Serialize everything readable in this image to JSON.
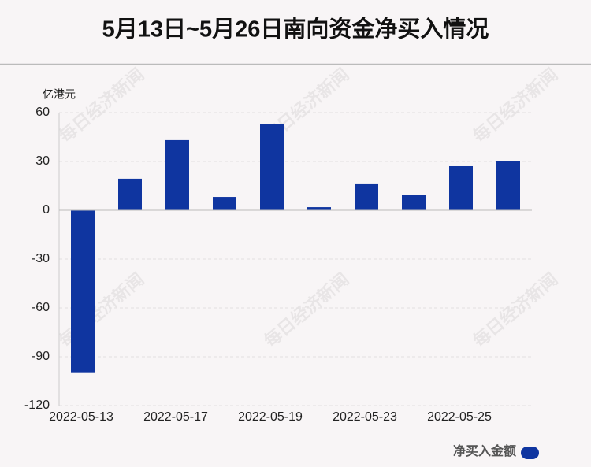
{
  "chart_data": {
    "type": "bar",
    "title": "5月13日~5月26日南向资金净买入情况",
    "y_axis_unit": "亿港元",
    "watermark": "每日经济新闻",
    "categories": [
      "2022-05-13",
      null,
      "2022-05-17",
      null,
      "2022-05-19",
      null,
      "2022-05-23",
      null,
      "2022-05-25",
      null
    ],
    "series": [
      {
        "name": "净买入金额",
        "color": "#0f35a0",
        "values": [
          -100,
          19.4,
          43.1,
          8.2,
          53.2,
          1.9,
          16,
          9.2,
          27.1,
          30
        ]
      }
    ],
    "ylim": [
      -120,
      60
    ],
    "yticks": [
      -120,
      -90,
      -60,
      -30,
      0,
      30,
      60
    ],
    "grid": true,
    "legend": "bottom-right"
  }
}
